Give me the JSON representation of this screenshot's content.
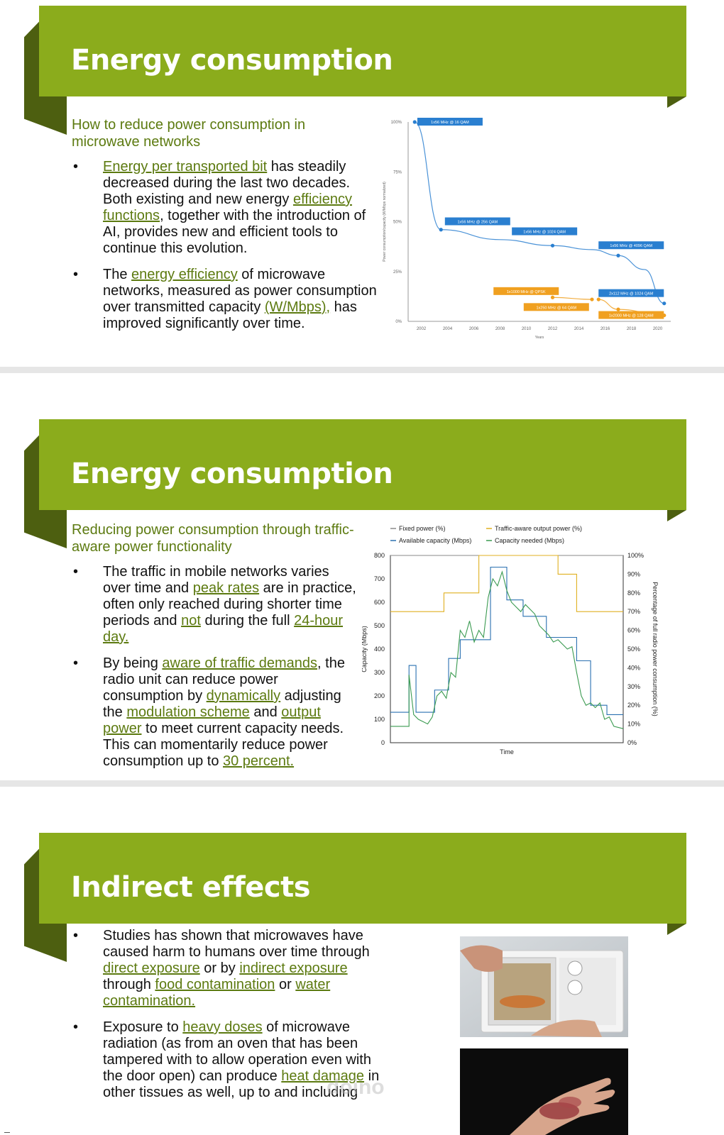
{
  "slides": [
    {
      "title": "Energy consumption",
      "subtitle": "How to reduce power consumption in microwave networks",
      "bullets": [
        [
          {
            "t": "Energy per transported bit",
            "l": true
          },
          {
            "t": " has steadily decreased during the last two decades. Both existing and new energy "
          },
          {
            "t": "efficiency functions",
            "l": true
          },
          {
            "t": ", together with the introduction of AI, provides new and efficient tools to continue this evolution."
          }
        ],
        [
          {
            "t": "The "
          },
          {
            "t": "energy efficiency",
            "l": true
          },
          {
            "t": " of microwave networks, measured as power consumption over transmitted capacity "
          },
          {
            "t": "(W/Mbps),",
            "l": true
          },
          {
            "t": " has improved significantly over time."
          }
        ]
      ]
    },
    {
      "title": "Energy consumption",
      "subtitle": "Reducing power consumption through traffic-aware power functionality",
      "bullets": [
        [
          {
            "t": "The traffic in mobile networks varies over time and "
          },
          {
            "t": "peak rates",
            "l": true
          },
          {
            "t": " are in practice, often only reached during shorter time periods and "
          },
          {
            "t": "not",
            "l": true
          },
          {
            "t": " during the full "
          },
          {
            "t": "24-hour day.",
            "l": true
          }
        ],
        [
          {
            "t": "By being "
          },
          {
            "t": "aware of traffic demands",
            "l": true
          },
          {
            "t": ", the radio unit can reduce power consumption by "
          },
          {
            "t": "dynamically",
            "l": true
          },
          {
            "t": " adjusting the "
          },
          {
            "t": "modulation scheme",
            "l": true
          },
          {
            "t": " and "
          },
          {
            "t": "output power",
            "l": true
          },
          {
            "t": " to meet current capacity needs. This can momentarily reduce power consumption up to "
          },
          {
            "t": "30 percent.",
            "l": true
          }
        ]
      ]
    },
    {
      "title": "Indirect effects",
      "bullets": [
        [
          {
            "t": "Studies has shown that microwaves have caused harm to humans over time through "
          },
          {
            "t": "direct exposure",
            "l": true
          },
          {
            "t": " or by "
          },
          {
            "t": "indirect exposure",
            "l": true
          },
          {
            "t": " through "
          },
          {
            "t": "food contamination",
            "l": true
          },
          {
            "t": " or "
          },
          {
            "t": "water contamination.",
            "l": true
          }
        ],
        [
          {
            "t": "Exposure to "
          },
          {
            "t": "heavy doses",
            "l": true
          },
          {
            "t": " of microwave radiation (as from an oven that has been tampered with to allow operation even with the door open) can produce "
          },
          {
            "t": "heat damage",
            "l": true
          },
          {
            "t": " in other tissues as well, up to and including"
          }
        ]
      ]
    }
  ],
  "bullet_glyph": "•",
  "chart_data": [
    {
      "type": "line",
      "ylabel": "Power consumption/capacity (W/Mbps normalized)",
      "xlabel": "Years",
      "x_ticks": [
        "2002",
        "2004",
        "2006",
        "2008",
        "2010",
        "2012",
        "2014",
        "2016",
        "2018",
        "2020"
      ],
      "y_ticks": [
        "0%",
        "25%",
        "50%",
        "75%",
        "100%"
      ],
      "ylim": [
        0,
        100
      ],
      "xlim": [
        2001,
        2021
      ],
      "series": [
        {
          "color": "#2a7fd0",
          "points": [
            [
              2001.5,
              100
            ],
            [
              2003.5,
              46
            ],
            [
              2008,
              41
            ],
            [
              2012,
              38
            ],
            [
              2015,
              36
            ],
            [
              2017,
              33
            ],
            [
              2019,
              26
            ],
            [
              2020.5,
              9
            ]
          ]
        },
        {
          "color": "#f0a020",
          "points": [
            [
              2012,
              12
            ],
            [
              2015,
              11
            ]
          ]
        },
        {
          "color": "#f0a020",
          "points": [
            [
              2015.5,
              11
            ],
            [
              2017,
              6
            ],
            [
              2020.5,
              3
            ]
          ]
        }
      ],
      "annotations": [
        {
          "text": "1x56 MHz @ 16 QAM",
          "x": 2001.7,
          "y": 100,
          "color": "#2a7fd0"
        },
        {
          "text": "1x56 MHz @ 256 QAM",
          "x": 2003.8,
          "y": 50,
          "color": "#2a7fd0"
        },
        {
          "text": "1x56 MHz @ 1024 QAM",
          "x": 2008.9,
          "y": 45,
          "color": "#2a7fd0"
        },
        {
          "text": "1x56 MHz @ 4096 QAM",
          "x": 2015.5,
          "y": 38,
          "color": "#2a7fd0"
        },
        {
          "text": "1x1000 MHz @ QPSK",
          "x": 2007.5,
          "y": 15,
          "color": "#f0a020"
        },
        {
          "text": "2x112 MHz @ 1024 QAM",
          "x": 2015.5,
          "y": 14,
          "color": "#2a7fd0"
        },
        {
          "text": "1x250 MHz @ 64 QAM",
          "x": 2009.8,
          "y": 7,
          "color": "#f0a020"
        },
        {
          "text": "1x2000 MHz @ 128 QAM",
          "x": 2015.5,
          "y": 3,
          "color": "#f0a020"
        }
      ]
    },
    {
      "type": "line",
      "xlabel": "Time",
      "ylabel": "Capacity (Mbps)",
      "y2label": "Percentage of full radio power consumption (%)",
      "ylim": [
        0,
        800
      ],
      "y2lim": [
        0,
        100
      ],
      "y_ticks": [
        "0",
        "100",
        "200",
        "300",
        "400",
        "500",
        "600",
        "700",
        "800"
      ],
      "y2_ticks": [
        "0%",
        "10%",
        "20%",
        "30%",
        "40%",
        "50%",
        "60%",
        "70%",
        "80%",
        "90%",
        "100%"
      ],
      "legend": [
        "Fixed power (%)",
        "Traffic-aware output power (%)",
        "Available capacity (Mbps)",
        "Capacity needed (Mbps)"
      ],
      "series": [
        {
          "name": "Fixed power (%)",
          "color": "#8a8a8a",
          "points": [
            [
              0,
              100
            ],
            [
              100,
              100
            ]
          ]
        },
        {
          "name": "Traffic-aware output power (%)",
          "color": "#e0b020",
          "points": [
            [
              0,
              70
            ],
            [
              23,
              70
            ],
            [
              23,
              80
            ],
            [
              38,
              80
            ],
            [
              38,
              100
            ],
            [
              72,
              100
            ],
            [
              72,
              90
            ],
            [
              80,
              90
            ],
            [
              80,
              70
            ],
            [
              100,
              70
            ]
          ]
        },
        {
          "name": "Available capacity (Mbps)",
          "color": "#2a70b0",
          "points": [
            [
              0,
              130
            ],
            [
              8,
              130
            ],
            [
              8,
              330
            ],
            [
              11,
              330
            ],
            [
              11,
              130
            ],
            [
              19,
              130
            ],
            [
              19,
              225
            ],
            [
              25,
              225
            ],
            [
              25,
              360
            ],
            [
              30,
              360
            ],
            [
              30,
              440
            ],
            [
              43,
              440
            ],
            [
              43,
              750
            ],
            [
              50,
              750
            ],
            [
              50,
              610
            ],
            [
              57,
              610
            ],
            [
              57,
              540
            ],
            [
              67,
              540
            ],
            [
              67,
              450
            ],
            [
              80,
              450
            ],
            [
              80,
              350
            ],
            [
              86,
              350
            ],
            [
              86,
              160
            ],
            [
              93,
              160
            ],
            [
              93,
              120
            ],
            [
              100,
              120
            ]
          ]
        },
        {
          "name": "Capacity needed (Mbps)",
          "color": "#3a9a50",
          "points": [
            [
              0,
              70
            ],
            [
              8,
              70
            ],
            [
              8,
              290
            ],
            [
              10,
              120
            ],
            [
              12,
              100
            ],
            [
              14,
              90
            ],
            [
              16,
              80
            ],
            [
              18,
              110
            ],
            [
              20,
              200
            ],
            [
              22,
              220
            ],
            [
              24,
              190
            ],
            [
              26,
              300
            ],
            [
              28,
              280
            ],
            [
              30,
              480
            ],
            [
              32,
              450
            ],
            [
              34,
              520
            ],
            [
              36,
              430
            ],
            [
              38,
              480
            ],
            [
              40,
              450
            ],
            [
              42,
              620
            ],
            [
              44,
              700
            ],
            [
              46,
              670
            ],
            [
              48,
              730
            ],
            [
              50,
              650
            ],
            [
              52,
              600
            ],
            [
              54,
              580
            ],
            [
              56,
              560
            ],
            [
              58,
              590
            ],
            [
              60,
              570
            ],
            [
              62,
              550
            ],
            [
              64,
              500
            ],
            [
              66,
              480
            ],
            [
              68,
              460
            ],
            [
              70,
              430
            ],
            [
              72,
              440
            ],
            [
              74,
              420
            ],
            [
              76,
              400
            ],
            [
              78,
              410
            ],
            [
              80,
              300
            ],
            [
              82,
              200
            ],
            [
              84,
              160
            ],
            [
              86,
              170
            ],
            [
              88,
              150
            ],
            [
              90,
              170
            ],
            [
              92,
              100
            ],
            [
              94,
              110
            ],
            [
              96,
              70
            ],
            [
              100,
              60
            ]
          ]
        }
      ]
    }
  ]
}
